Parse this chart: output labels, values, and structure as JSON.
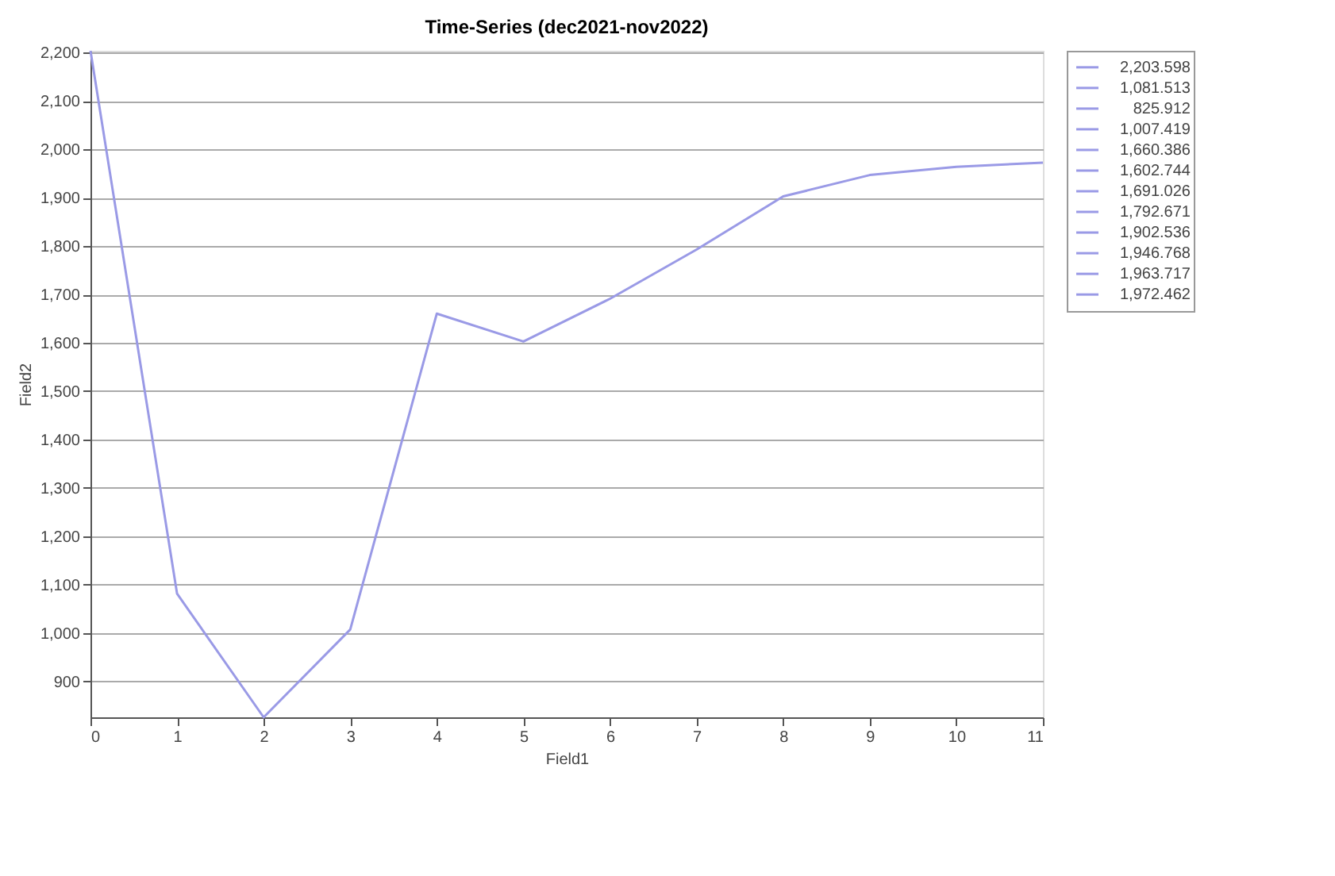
{
  "chart_data": {
    "type": "line",
    "title": "Time-Series (dec2021-nov2022)",
    "xlabel": "Field1",
    "ylabel": "Field2",
    "x": [
      0,
      1,
      2,
      3,
      4,
      5,
      6,
      7,
      8,
      9,
      10,
      11
    ],
    "series": [
      {
        "color": "#9a9ae6",
        "values": [
          2203.598,
          1081.513,
          825.912,
          1007.419,
          1660.386,
          1602.744,
          1691.026,
          1792.671,
          1902.536,
          1946.768,
          1963.717,
          1972.462
        ]
      }
    ],
    "annotations": [
      "2,203.598",
      "1,081.513",
      "825.912",
      "1,007.419",
      "1,660.386",
      "1,602.744",
      "1,691.026",
      "1,792.671",
      "1,902.536",
      "1,946.768",
      "1,963.717",
      "1,972.462"
    ],
    "xlim": [
      0,
      11
    ],
    "xticks": [
      0,
      1,
      2,
      3,
      4,
      5,
      6,
      7,
      8,
      9,
      10,
      11
    ],
    "ylim": [
      825.912,
      2203.598
    ],
    "yticks": [
      {
        "value": 900,
        "label": "900"
      },
      {
        "value": 1000,
        "label": "1,000"
      },
      {
        "value": 1100,
        "label": "1,100"
      },
      {
        "value": 1200,
        "label": "1,200"
      },
      {
        "value": 1300,
        "label": "1,300"
      },
      {
        "value": 1400,
        "label": "1,400"
      },
      {
        "value": 1500,
        "label": "1,500"
      },
      {
        "value": 1600,
        "label": "1,600"
      },
      {
        "value": 1700,
        "label": "1,700"
      },
      {
        "value": 1800,
        "label": "1,800"
      },
      {
        "value": 1900,
        "label": "1,900"
      },
      {
        "value": 2000,
        "label": "2,000"
      },
      {
        "value": 2100,
        "label": "2,100"
      },
      {
        "value": 2200,
        "label": "2,200"
      }
    ],
    "grid": "y",
    "marker": "none",
    "line_style": "solid"
  }
}
